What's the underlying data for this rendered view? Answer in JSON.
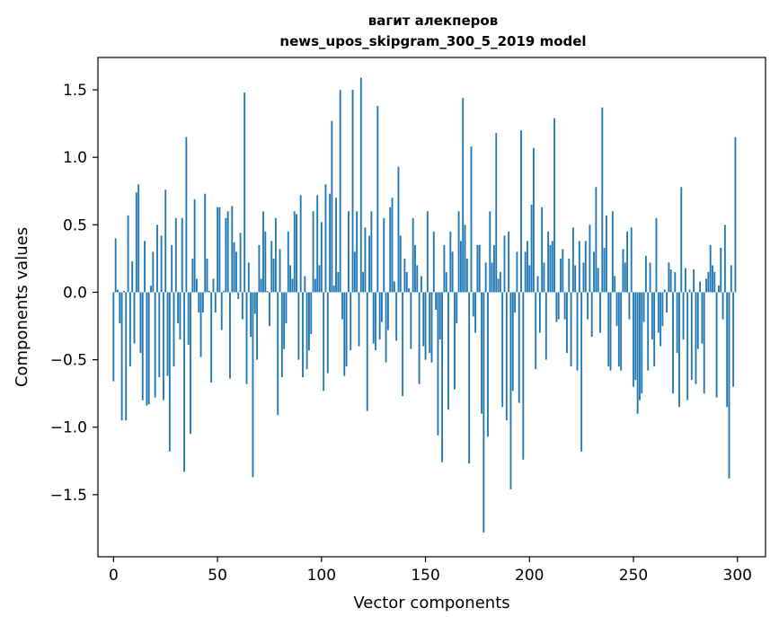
{
  "chart_data": {
    "type": "bar",
    "title": "вагит алекперов",
    "subtitle": "news_upos_skipgram_300_5_2019 model",
    "xlabel": "Vector components",
    "ylabel": "Components values",
    "xlim": [
      -7.5,
      313.5
    ],
    "ylim": [
      -1.96,
      1.74
    ],
    "xticks": [
      0,
      50,
      100,
      150,
      200,
      250,
      300
    ],
    "xtick_labels": [
      "0",
      "50",
      "100",
      "150",
      "200",
      "250",
      "300"
    ],
    "yticks": [
      -1.5,
      -1.0,
      -0.5,
      0.0,
      0.5,
      1.0,
      1.5
    ],
    "ytick_labels": [
      "−1.5",
      "−1.0",
      "−0.5",
      "0.0",
      "0.5",
      "1.0",
      "1.5"
    ],
    "grid": false,
    "bar_color": "#1f77b4",
    "x": [
      0,
      1,
      2,
      3,
      4,
      5,
      6,
      7,
      8,
      9,
      10,
      11,
      12,
      13,
      14,
      15,
      16,
      17,
      18,
      19,
      20,
      21,
      22,
      23,
      24,
      25,
      26,
      27,
      28,
      29,
      30,
      31,
      32,
      33,
      34,
      35,
      36,
      37,
      38,
      39,
      40,
      41,
      42,
      43,
      44,
      45,
      46,
      47,
      48,
      49,
      50,
      51,
      52,
      53,
      54,
      55,
      56,
      57,
      58,
      59,
      60,
      61,
      62,
      63,
      64,
      65,
      66,
      67,
      68,
      69,
      70,
      71,
      72,
      73,
      74,
      75,
      76,
      77,
      78,
      79,
      80,
      81,
      82,
      83,
      84,
      85,
      86,
      87,
      88,
      89,
      90,
      91,
      92,
      93,
      94,
      95,
      96,
      97,
      98,
      99,
      100,
      101,
      102,
      103,
      104,
      105,
      106,
      107,
      108,
      109,
      110,
      111,
      112,
      113,
      114,
      115,
      116,
      117,
      118,
      119,
      120,
      121,
      122,
      123,
      124,
      125,
      126,
      127,
      128,
      129,
      130,
      131,
      132,
      133,
      134,
      135,
      136,
      137,
      138,
      139,
      140,
      141,
      142,
      143,
      144,
      145,
      146,
      147,
      148,
      149,
      150,
      151,
      152,
      153,
      154,
      155,
      156,
      157,
      158,
      159,
      160,
      161,
      162,
      163,
      164,
      165,
      166,
      167,
      168,
      169,
      170,
      171,
      172,
      173,
      174,
      175,
      176,
      177,
      178,
      179,
      180,
      181,
      182,
      183,
      184,
      185,
      186,
      187,
      188,
      189,
      190,
      191,
      192,
      193,
      194,
      195,
      196,
      197,
      198,
      199,
      200,
      201,
      202,
      203,
      204,
      205,
      206,
      207,
      208,
      209,
      210,
      211,
      212,
      213,
      214,
      215,
      216,
      217,
      218,
      219,
      220,
      221,
      222,
      223,
      224,
      225,
      226,
      227,
      228,
      229,
      230,
      231,
      232,
      233,
      234,
      235,
      236,
      237,
      238,
      239,
      240,
      241,
      242,
      243,
      244,
      245,
      246,
      247,
      248,
      249,
      250,
      251,
      252,
      253,
      254,
      255,
      256,
      257,
      258,
      259,
      260,
      261,
      262,
      263,
      264,
      265,
      266,
      267,
      268,
      269,
      270,
      271,
      272,
      273,
      274,
      275,
      276,
      277,
      278,
      279,
      280,
      281,
      282,
      283,
      284,
      285,
      286,
      287,
      288,
      289,
      290,
      291,
      292,
      293,
      294,
      295,
      296,
      297,
      298,
      299
    ],
    "values": [
      -0.66,
      0.4,
      0.02,
      -0.23,
      -0.95,
      0.01,
      -0.95,
      0.57,
      -0.55,
      0.23,
      -0.38,
      0.74,
      0.8,
      -0.45,
      -0.8,
      0.38,
      -0.84,
      -0.83,
      0.05,
      0.3,
      -0.78,
      0.5,
      -0.63,
      0.42,
      -0.8,
      0.76,
      -0.62,
      -1.18,
      0.35,
      -0.55,
      0.55,
      -0.23,
      -0.35,
      0.55,
      -1.33,
      1.15,
      -0.39,
      -1.05,
      0.25,
      0.69,
      0.1,
      -0.15,
      -0.48,
      -0.15,
      0.73,
      0.25,
      0.01,
      -0.67,
      0.1,
      -0.15,
      0.63,
      0.63,
      -0.28,
      0.01,
      0.55,
      0.6,
      -0.64,
      0.64,
      0.37,
      0.3,
      -0.05,
      0.44,
      -0.2,
      1.48,
      -0.68,
      0.22,
      -0.33,
      -1.37,
      -0.16,
      -0.5,
      0.35,
      0.1,
      0.6,
      0.45,
      0.01,
      -0.25,
      0.38,
      0.25,
      0.55,
      -0.91,
      0.32,
      -0.63,
      -0.42,
      -0.23,
      0.45,
      0.2,
      0.1,
      0.6,
      0.58,
      -0.5,
      0.72,
      -0.63,
      0.12,
      -0.57,
      -0.43,
      -0.31,
      0.6,
      0.1,
      0.72,
      0.2,
      0.52,
      -0.73,
      0.8,
      -0.6,
      0.73,
      1.27,
      0.05,
      0.7,
      0.15,
      1.5,
      -0.2,
      -0.62,
      -0.55,
      0.6,
      -0.43,
      1.5,
      0.3,
      0.6,
      -0.4,
      1.59,
      0.15,
      0.48,
      -0.88,
      0.42,
      0.6,
      -0.38,
      -0.43,
      1.38,
      -0.35,
      -0.22,
      0.55,
      -0.52,
      -0.28,
      0.63,
      0.7,
      0.08,
      -0.36,
      0.93,
      0.42,
      -0.77,
      0.25,
      0.15,
      0.03,
      -0.42,
      0.55,
      0.35,
      0.2,
      -0.68,
      0.12,
      -0.4,
      -0.5,
      0.6,
      -0.45,
      -0.52,
      0.45,
      -0.13,
      -1.06,
      -0.35,
      -1.26,
      0.35,
      0.15,
      -0.87,
      0.45,
      0.3,
      -0.72,
      -0.23,
      0.6,
      0.38,
      1.44,
      0.5,
      0.25,
      -1.27,
      1.08,
      -0.18,
      -0.3,
      0.35,
      0.35,
      -0.9,
      -1.78,
      0.22,
      -1.07,
      0.6,
      0.22,
      0.35,
      1.18,
      0.1,
      0.15,
      -0.85,
      0.42,
      -0.95,
      0.45,
      -1.46,
      -0.73,
      -0.15,
      0.3,
      -0.82,
      1.2,
      -1.24,
      0.3,
      0.38,
      0.2,
      0.65,
      1.07,
      -0.57,
      0.12,
      -0.3,
      0.63,
      0.22,
      -0.5,
      0.45,
      0.35,
      0.38,
      1.29,
      -0.22,
      -0.2,
      0.25,
      0.32,
      -0.2,
      -0.45,
      0.25,
      -0.55,
      0.48,
      0.2,
      -0.58,
      0.38,
      -1.18,
      0.22,
      0.38,
      -0.2,
      0.5,
      -0.33,
      0.3,
      0.78,
      0.18,
      -0.3,
      1.37,
      0.33,
      0.57,
      -0.55,
      -0.58,
      0.6,
      0.12,
      -0.25,
      -0.55,
      -0.58,
      0.32,
      0.22,
      0.45,
      -0.2,
      0.48,
      -0.7,
      -0.65,
      -0.9,
      -0.8,
      -0.75,
      -0.22,
      0.27,
      -0.58,
      0.22,
      -0.35,
      -0.55,
      0.55,
      -0.3,
      -0.4,
      -0.25,
      0.02,
      -0.15,
      0.22,
      0.17,
      -0.75,
      0.15,
      -0.45,
      -0.85,
      0.78,
      -0.35,
      0.18,
      -0.8,
      0.02,
      -0.65,
      0.17,
      -0.68,
      -0.42,
      0.08,
      -0.38,
      -0.75,
      0.1,
      0.15,
      0.35,
      0.2,
      0.15,
      -0.78,
      0.05,
      0.33,
      -0.2,
      0.5,
      -0.85,
      -1.38,
      0.2,
      -0.7,
      1.15
    ]
  }
}
